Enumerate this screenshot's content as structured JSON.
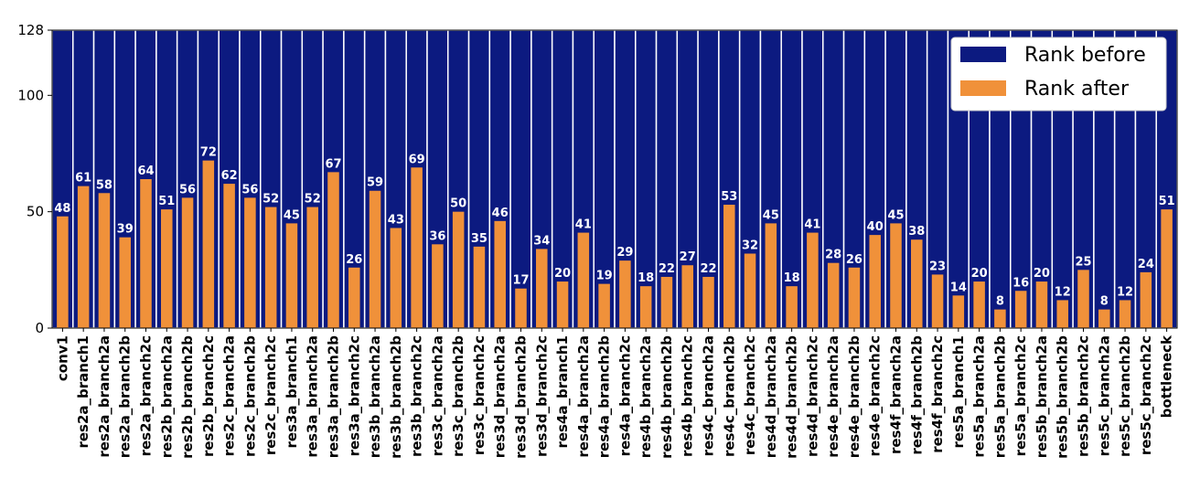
{
  "chart_data": {
    "type": "bar",
    "categories": [
      "conv1",
      "res2a_branch1",
      "res2a_branch2a",
      "res2a_branch2b",
      "res2a_branch2c",
      "res2b_branch2a",
      "res2b_branch2b",
      "res2b_branch2c",
      "res2c_branch2a",
      "res2c_branch2b",
      "res2c_branch2c",
      "res3a_branch1",
      "res3a_branch2a",
      "res3a_branch2b",
      "res3a_branch2c",
      "res3b_branch2a",
      "res3b_branch2b",
      "res3b_branch2c",
      "res3c_branch2a",
      "res3c_branch2b",
      "res3c_branch2c",
      "res3d_branch2a",
      "res3d_branch2b",
      "res3d_branch2c",
      "res4a_branch1",
      "res4a_branch2a",
      "res4a_branch2b",
      "res4a_branch2c",
      "res4b_branch2a",
      "res4b_branch2b",
      "res4b_branch2c",
      "res4c_branch2a",
      "res4c_branch2b",
      "res4c_branch2c",
      "res4d_branch2a",
      "res4d_branch2b",
      "res4d_branch2c",
      "res4e_branch2a",
      "res4e_branch2b",
      "res4e_branch2c",
      "res4f_branch2a",
      "res4f_branch2b",
      "res4f_branch2c",
      "res5a_branch1",
      "res5a_branch2a",
      "res5a_branch2b",
      "res5a_branch2c",
      "res5b_branch2a",
      "res5b_branch2b",
      "res5b_branch2c",
      "res5c_branch2a",
      "res5c_branch2b",
      "res5c_branch2c",
      "bottleneck"
    ],
    "series": [
      {
        "name": "Rank before",
        "color": "#0c1a80",
        "values": [
          128,
          128,
          128,
          128,
          128,
          128,
          128,
          128,
          128,
          128,
          128,
          128,
          128,
          128,
          128,
          128,
          128,
          128,
          128,
          128,
          128,
          128,
          128,
          128,
          128,
          128,
          128,
          128,
          128,
          128,
          128,
          128,
          128,
          128,
          128,
          128,
          128,
          128,
          128,
          128,
          128,
          128,
          128,
          128,
          128,
          128,
          128,
          128,
          128,
          128,
          128,
          128,
          128,
          128
        ]
      },
      {
        "name": "Rank after",
        "color": "#f0913a",
        "values": [
          48,
          61,
          58,
          39,
          64,
          51,
          56,
          72,
          62,
          56,
          52,
          45,
          52,
          67,
          26,
          59,
          43,
          69,
          36,
          50,
          35,
          46,
          17,
          34,
          20,
          41,
          19,
          29,
          18,
          22,
          27,
          22,
          53,
          32,
          45,
          18,
          41,
          28,
          26,
          40,
          45,
          38,
          23,
          14,
          20,
          8,
          16,
          20,
          12,
          25,
          8,
          12,
          24,
          51
        ]
      }
    ],
    "ylim": [
      0,
      128
    ],
    "yticks": [
      0,
      50,
      100,
      128
    ],
    "legend": "upper right"
  }
}
